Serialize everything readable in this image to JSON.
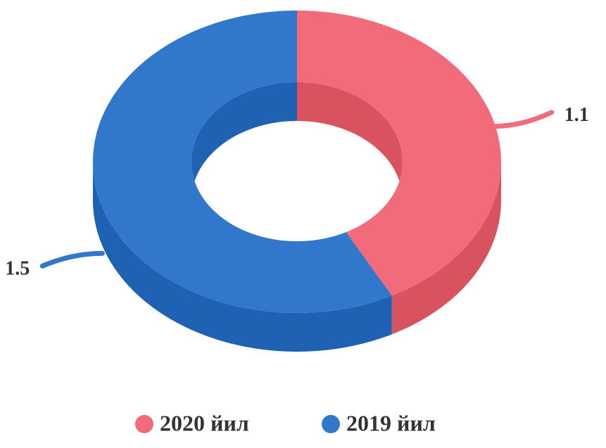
{
  "chart_data": {
    "type": "donut",
    "categories": [
      "2020 йил",
      "2019 йил"
    ],
    "values": [
      1.1,
      1.5
    ],
    "colors": [
      "#f26b7a",
      "#3178cc"
    ],
    "shade_colors": [
      "#d9525f",
      "#1f62b4"
    ]
  }
}
